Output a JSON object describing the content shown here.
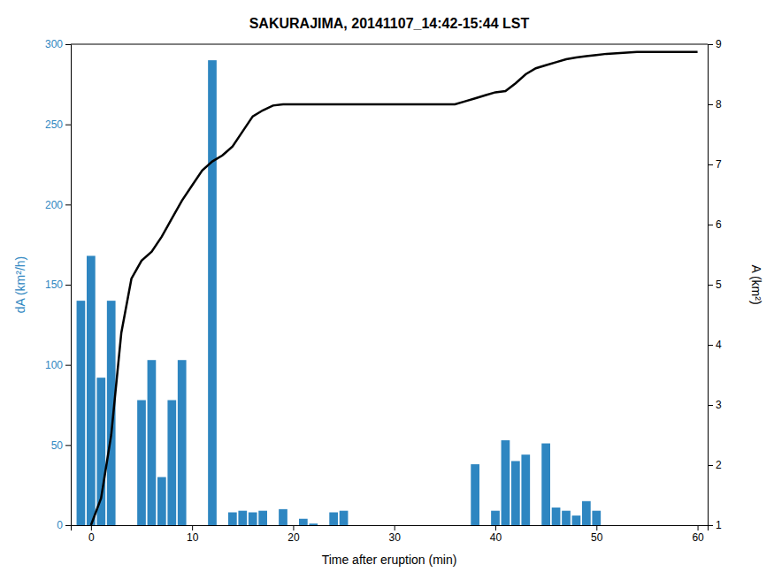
{
  "chart_data": {
    "type": "bar",
    "title": "SAKURAJIMA, 20141107_14:42-15:44 LST",
    "x_label": "Time after eruption (min)",
    "y_label": "dA (km²/h)",
    "y2_label": "A (km²)",
    "xlim": [
      -2,
      61
    ],
    "xticks": [
      0,
      10,
      20,
      30,
      40,
      50,
      60
    ],
    "ylim": [
      0,
      300
    ],
    "yticks": [
      0,
      50,
      100,
      150,
      200,
      250,
      300
    ],
    "y2lim": [
      1,
      9
    ],
    "y2ticks": [
      1,
      2,
      3,
      4,
      5,
      6,
      7,
      8,
      9
    ],
    "series": [
      {
        "type": "bar",
        "color": "#2E86C1",
        "x": [
          -1,
          0,
          1,
          2,
          3,
          4,
          5,
          6,
          7,
          8,
          9,
          10,
          11,
          12,
          13,
          14,
          15,
          16,
          17,
          18,
          19,
          20,
          21,
          22,
          23,
          24,
          25,
          26,
          27,
          28,
          29,
          30,
          31,
          32,
          33,
          34,
          35,
          36,
          37,
          38,
          39,
          40,
          41,
          42,
          43,
          44,
          45,
          46,
          47,
          48,
          49,
          50,
          51,
          52,
          53,
          54,
          55,
          56,
          57,
          58,
          59,
          60
        ],
        "values": [
          140,
          168,
          92,
          140,
          0,
          0,
          78,
          103,
          30,
          78,
          103,
          0,
          0,
          290,
          0,
          8,
          9,
          8,
          9,
          0,
          10,
          0,
          4,
          1,
          0,
          8,
          9,
          0,
          0,
          0,
          0,
          0,
          0,
          0,
          0,
          0,
          0,
          0,
          0,
          38,
          0,
          9,
          53,
          40,
          44,
          0,
          51,
          11,
          9,
          6,
          15,
          9,
          0,
          0,
          0,
          0,
          0,
          0,
          0,
          0,
          0,
          0
        ]
      },
      {
        "type": "line",
        "color": "#000000",
        "axis": "y2",
        "x": [
          0,
          1,
          2,
          3,
          4,
          5,
          6,
          7,
          8,
          9,
          10,
          11,
          12,
          13,
          14,
          15,
          16,
          17,
          18,
          19,
          20,
          21,
          22,
          23,
          24,
          25,
          26,
          27,
          28,
          29,
          30,
          31,
          32,
          33,
          34,
          35,
          36,
          37,
          38,
          39,
          40,
          41,
          42,
          43,
          44,
          45,
          46,
          47,
          48,
          49,
          50,
          51,
          52,
          53,
          54,
          55,
          56,
          57,
          58,
          59,
          60
        ],
        "values": [
          1.0,
          1.45,
          2.5,
          4.2,
          5.1,
          5.4,
          5.55,
          5.8,
          6.1,
          6.4,
          6.65,
          6.9,
          7.05,
          7.15,
          7.3,
          7.55,
          7.8,
          7.9,
          7.98,
          8.0,
          8.0,
          8.0,
          8.0,
          8.0,
          8.0,
          8.0,
          8.0,
          8.0,
          8.0,
          8.0,
          8.0,
          8.0,
          8.0,
          8.0,
          8.0,
          8.0,
          8.0,
          8.05,
          8.1,
          8.15,
          8.2,
          8.22,
          8.35,
          8.5,
          8.6,
          8.65,
          8.7,
          8.75,
          8.78,
          8.8,
          8.82,
          8.84,
          8.85,
          8.86,
          8.87,
          8.87,
          8.87,
          8.87,
          8.87,
          8.87,
          8.87
        ]
      }
    ]
  }
}
